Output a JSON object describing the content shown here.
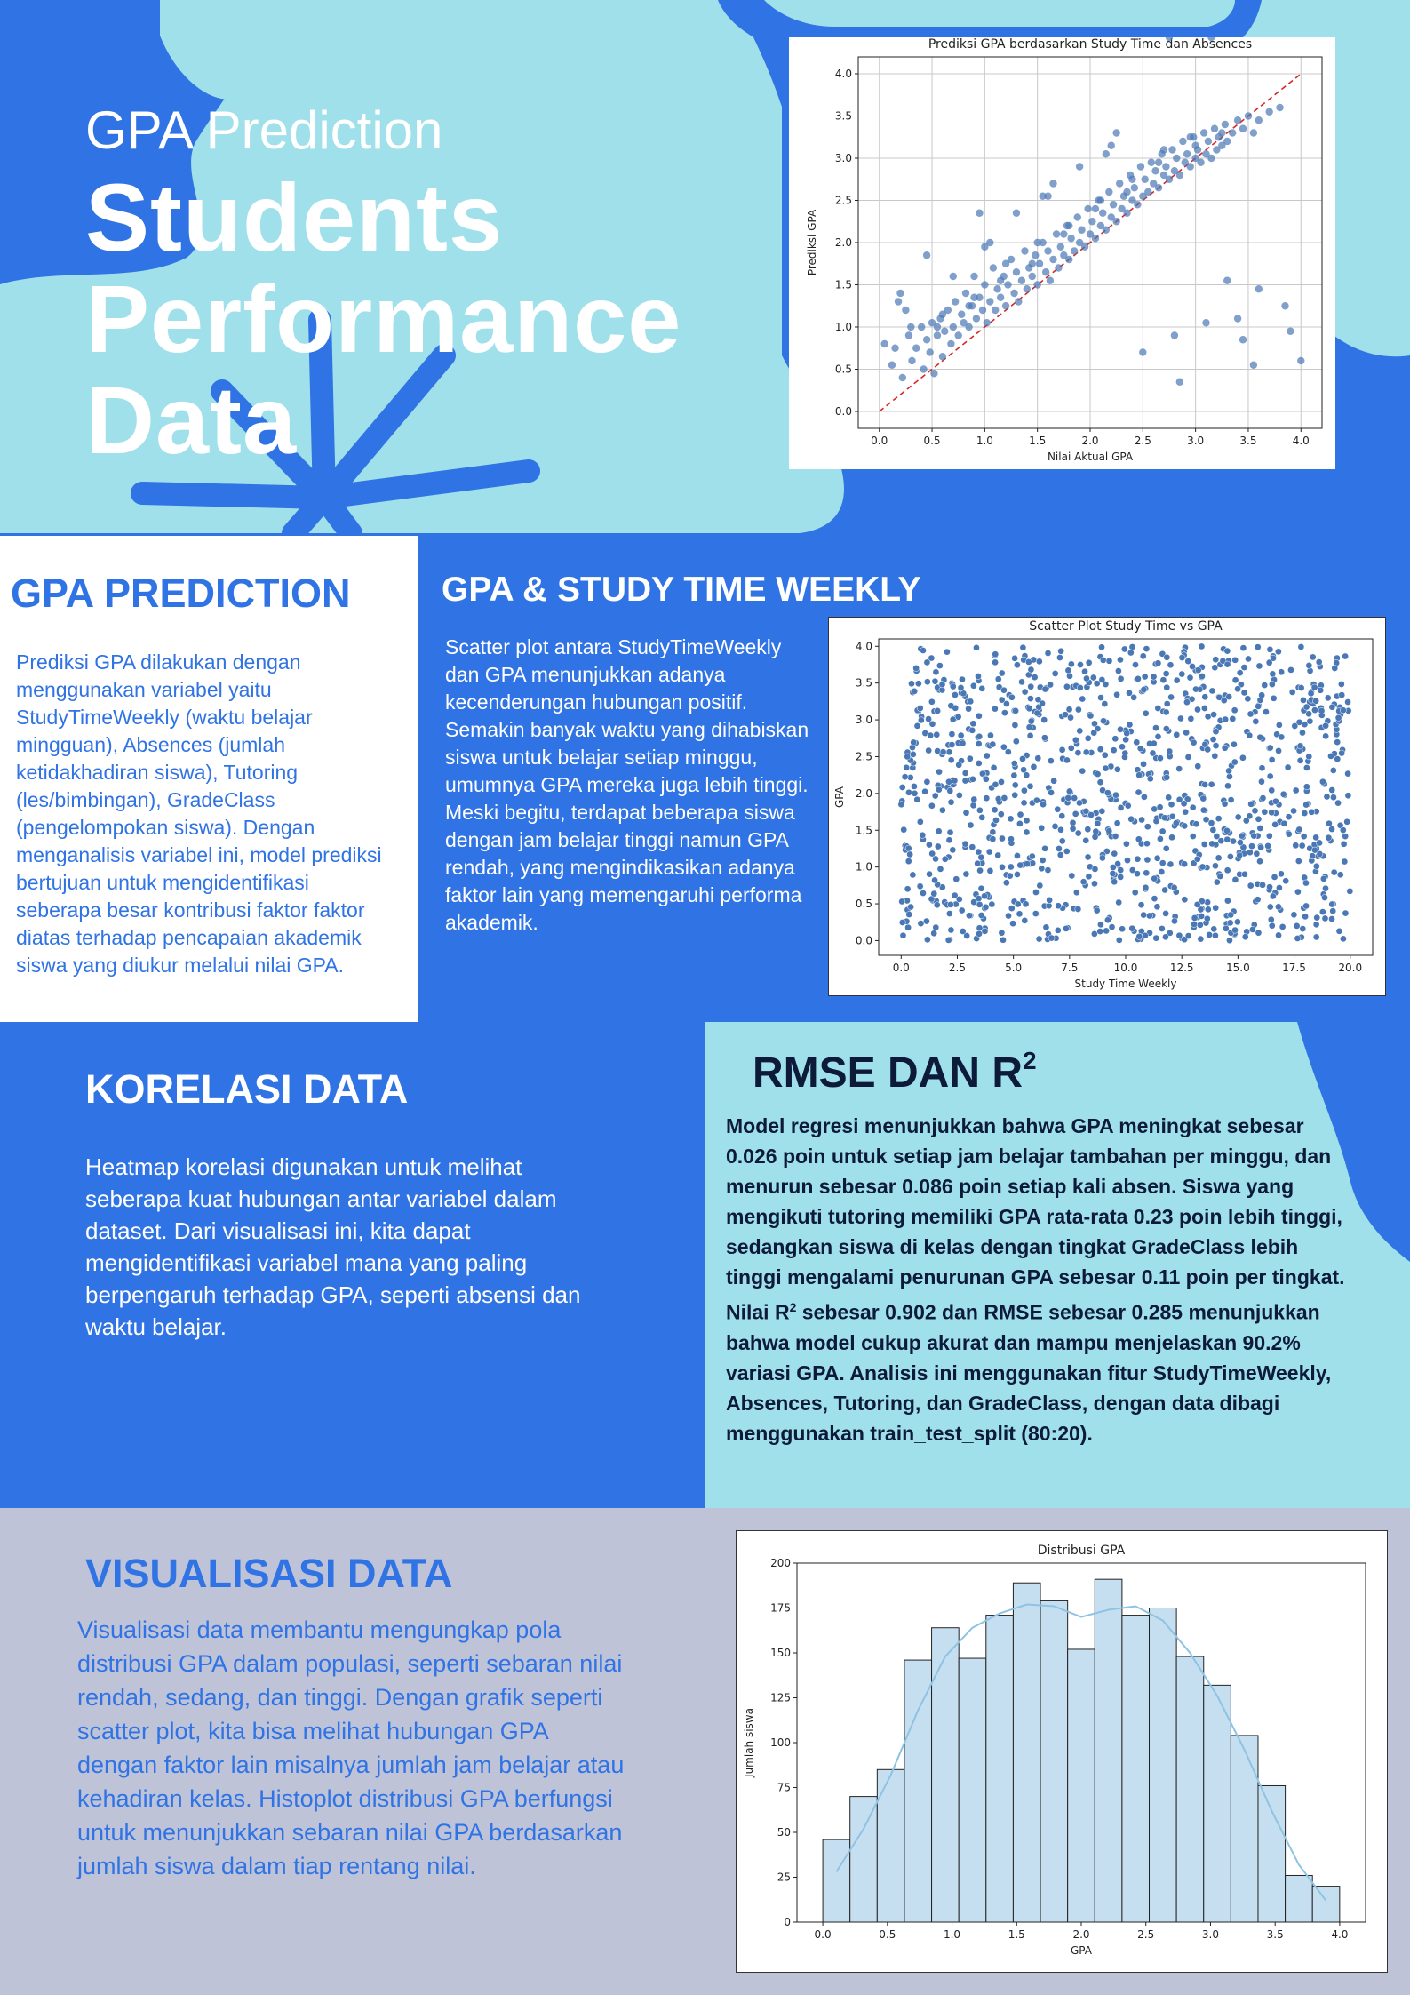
{
  "hero": {
    "subtitle": "GPA Prediction",
    "title_lines": [
      "Students",
      "Performance",
      "Data"
    ]
  },
  "sections": {
    "gpa_prediction": {
      "title": "GPA PREDICTION",
      "body": "Prediksi GPA dilakukan dengan menggunakan variabel yaitu StudyTimeWeekly (waktu belajar mingguan),  Absences (jumlah ketidakhadiran siswa), Tutoring (les/bimbingan), GradeClass (pengelompokan siswa). Dengan menganalisis variabel ini, model prediksi bertujuan untuk mengidentifikasi seberapa besar kontribusi faktor faktor diatas terhadap pencapaian akademik siswa yang diukur melalui nilai GPA."
    },
    "gpa_study_time": {
      "title": "GPA & STUDY TIME WEEKLY",
      "body": "Scatter plot antara StudyTimeWeekly dan GPA menunjukkan adanya kecenderungan hubungan positif. Semakin banyak waktu yang dihabiskan siswa untuk belajar setiap minggu, umumnya GPA mereka juga lebih tinggi. Meski begitu, terdapat beberapa siswa dengan jam belajar tinggi namun GPA rendah, yang mengindikasikan adanya faktor lain yang memengaruhi performa akademik."
    },
    "korelasi": {
      "title": "KORELASI DATA",
      "body": "Heatmap korelasi digunakan untuk melihat seberapa kuat hubungan antar variabel dalam dataset. Dari visualisasi ini, kita dapat mengidentifikasi variabel mana yang paling berpengaruh terhadap GPA, seperti absensi dan waktu belajar."
    },
    "rmse": {
      "title": "RMSE DAN R",
      "title_sup": "2",
      "body_part1": "Model regresi menunjukkan bahwa GPA meningkat sebesar 0.026 poin untuk setiap jam belajar tambahan per minggu, dan menurun sebesar 0.086 poin setiap kali absen. Siswa yang mengikuti tutoring memiliki GPA rata-rata 0.23 poin lebih tinggi, sedangkan siswa di kelas dengan tingkat GradeClass lebih tinggi mengalami penurunan GPA sebesar 0.11 poin per tingkat. Nilai R",
      "body_sup": "2",
      "body_part2": " sebesar 0.902 dan RMSE sebesar 0.285 menunjukkan bahwa model cukup akurat dan mampu menjelaskan 90.2% variasi GPA. Analisis ini menggunakan fitur StudyTimeWeekly, Absences, Tutoring, dan GradeClass, dengan data dibagi menggunakan train_test_split (80:20)."
    },
    "visualisasi": {
      "title": "VISUALISASI DATA",
      "body": "Visualisasi data membantu mengungkap pola distribusi GPA dalam populasi, seperti sebaran nilai rendah, sedang, dan tinggi. Dengan grafik seperti scatter plot, kita bisa melihat hubungan GPA dengan faktor lain misalnya jumlah jam belajar atau kehadiran kelas. Histoplot distribusi GPA berfungsi untuk menunjukkan sebaran nilai GPA berdasarkan jumlah siswa dalam tiap rentang nilai."
    }
  },
  "colors": {
    "blue": "#2f73e4",
    "light_cyan": "#9fe0ea",
    "lavender": "#bec3d8",
    "navy": "#0d1a3a",
    "point": "#4a78b5",
    "hist_fill": "#c6dff0"
  },
  "chart_data": [
    {
      "id": "prediction",
      "type": "scatter",
      "title": "Prediksi GPA berdasarkan Study Time dan Absences",
      "xlabel": "Nilai Aktual GPA",
      "ylabel": "Prediksi GPA",
      "xlim": [
        -0.2,
        4.2
      ],
      "ylim": [
        -0.2,
        4.2
      ],
      "xticks": [
        0.0,
        0.5,
        1.0,
        1.5,
        2.0,
        2.5,
        3.0,
        3.5,
        4.0
      ],
      "yticks": [
        0.0,
        0.5,
        1.0,
        1.5,
        2.0,
        2.5,
        3.0,
        3.5,
        4.0
      ],
      "grid": true,
      "reference_line": {
        "from": [
          0,
          0
        ],
        "to": [
          4,
          4
        ],
        "style": "dashed",
        "color": "#d62728"
      },
      "points_x": [
        0.05,
        0.12,
        0.18,
        0.22,
        0.28,
        0.31,
        0.35,
        0.4,
        0.42,
        0.45,
        0.48,
        0.5,
        0.52,
        0.55,
        0.58,
        0.6,
        0.62,
        0.65,
        0.68,
        0.7,
        0.72,
        0.75,
        0.78,
        0.8,
        0.82,
        0.85,
        0.88,
        0.9,
        0.92,
        0.95,
        0.98,
        1.0,
        1.02,
        1.05,
        1.08,
        1.1,
        1.12,
        1.15,
        1.18,
        1.2,
        1.22,
        1.25,
        1.28,
        1.3,
        1.32,
        1.35,
        1.38,
        1.4,
        1.42,
        1.45,
        1.48,
        1.5,
        1.52,
        1.55,
        1.58,
        1.6,
        1.62,
        1.65,
        1.68,
        1.7,
        1.72,
        1.75,
        1.78,
        1.8,
        1.82,
        1.85,
        1.88,
        1.9,
        1.92,
        1.95,
        1.98,
        2.0,
        2.02,
        2.05,
        2.08,
        2.1,
        2.12,
        2.15,
        2.18,
        2.2,
        2.22,
        2.25,
        2.28,
        2.3,
        2.32,
        2.35,
        2.38,
        2.4,
        2.42,
        2.45,
        2.48,
        2.5,
        2.52,
        2.55,
        2.58,
        2.6,
        2.62,
        2.65,
        2.68,
        2.7,
        2.72,
        2.75,
        2.78,
        2.8,
        2.82,
        2.85,
        2.88,
        2.9,
        2.92,
        2.95,
        2.98,
        3.0,
        3.02,
        3.05,
        3.08,
        3.1,
        3.12,
        3.15,
        3.18,
        3.2,
        3.22,
        3.25,
        3.28,
        3.3,
        3.35,
        3.4,
        3.45,
        3.5,
        3.55,
        3.6,
        3.7,
        3.8,
        3.9,
        4.0,
        0.3,
        0.6,
        0.9,
        1.2,
        1.5,
        1.8,
        2.1,
        2.4,
        2.7,
        3.0,
        3.3,
        3.6,
        1.0,
        1.6,
        2.2,
        2.8,
        3.4,
        0.7,
        1.3,
        1.9,
        2.5,
        3.1,
        0.15,
        0.25,
        0.55,
        0.85,
        1.15,
        1.45,
        1.75,
        2.05,
        2.35,
        2.65,
        2.95,
        3.25,
        3.55,
        3.85,
        0.45,
        1.05,
        1.65,
        2.25,
        2.85,
        3.45,
        0.2,
        0.95,
        1.55,
        2.15,
        2.75,
        3.15
      ],
      "points_y": [
        0.8,
        0.55,
        1.3,
        0.4,
        0.9,
        0.6,
        0.75,
        1.0,
        0.5,
        0.85,
        0.7,
        1.05,
        0.45,
        0.9,
        1.1,
        0.65,
        0.95,
        1.2,
        0.8,
        1.0,
        1.3,
        0.9,
        1.15,
        1.05,
        1.4,
        1.0,
        1.25,
        1.6,
        1.1,
        1.35,
        1.2,
        1.5,
        1.05,
        1.3,
        1.7,
        1.2,
        1.45,
        1.35,
        1.6,
        1.25,
        1.5,
        1.8,
        1.4,
        1.65,
        1.3,
        1.55,
        1.9,
        1.45,
        1.7,
        1.6,
        1.85,
        1.5,
        1.75,
        2.0,
        1.65,
        1.9,
        1.55,
        1.8,
        2.1,
        1.7,
        1.95,
        1.85,
        2.2,
        1.8,
        2.05,
        1.9,
        2.3,
        2.0,
        2.15,
        1.95,
        2.4,
        2.1,
        2.25,
        2.05,
        2.5,
        2.2,
        2.35,
        2.15,
        2.6,
        2.3,
        2.45,
        2.25,
        2.7,
        2.4,
        2.55,
        2.35,
        2.8,
        2.5,
        2.65,
        2.45,
        2.9,
        2.55,
        2.75,
        2.6,
        2.95,
        2.7,
        2.85,
        2.65,
        3.05,
        2.8,
        2.9,
        2.75,
        3.1,
        2.85,
        3.0,
        2.8,
        3.2,
        2.95,
        3.05,
        2.9,
        3.25,
        3.0,
        3.1,
        2.95,
        3.3,
        3.05,
        3.2,
        3.0,
        3.35,
        3.1,
        3.25,
        3.15,
        3.4,
        3.2,
        3.3,
        3.45,
        3.35,
        3.5,
        3.3,
        3.45,
        3.55,
        3.6,
        0.95,
        0.6,
        1.0,
        1.15,
        1.35,
        1.75,
        2.0,
        2.2,
        2.5,
        2.75,
        3.1,
        3.15,
        1.55,
        1.45,
        1.95,
        2.55,
        3.15,
        0.9,
        1.1,
        1.6,
        2.35,
        2.9,
        0.7,
        1.05,
        0.75,
        1.2,
        1.0,
        1.25,
        1.55,
        1.75,
        2.1,
        2.4,
        2.6,
        2.95,
        3.25,
        3.3,
        0.55,
        1.25,
        1.85,
        2.0,
        2.7,
        3.3,
        0.35,
        0.85,
        1.4,
        2.35,
        2.55,
        3.05
      ]
    },
    {
      "id": "studytime",
      "type": "scatter",
      "title": "Scatter Plot Study Time vs GPA",
      "xlabel": "Study Time Weekly",
      "ylabel": "GPA",
      "xlim": [
        -1,
        21
      ],
      "ylim": [
        -0.2,
        4.1
      ],
      "xticks": [
        0.0,
        2.5,
        5.0,
        7.5,
        10.0,
        12.5,
        15.0,
        17.5,
        20.0
      ],
      "yticks": [
        0.0,
        0.5,
        1.0,
        1.5,
        2.0,
        2.5,
        3.0,
        3.5,
        4.0
      ],
      "grid": false,
      "point_count": 1100,
      "x_range": [
        0,
        20
      ],
      "y_range": [
        0,
        4
      ]
    },
    {
      "id": "distribution",
      "type": "bar",
      "title": "Distribusi GPA",
      "xlabel": "GPA",
      "ylabel": "Jumlah siswa",
      "xlim": [
        -0.2,
        4.2
      ],
      "ylim": [
        0,
        200
      ],
      "xticks": [
        0.0,
        0.5,
        1.0,
        1.5,
        2.0,
        2.5,
        3.0,
        3.5,
        4.0
      ],
      "yticks": [
        0,
        25,
        50,
        75,
        100,
        125,
        150,
        175,
        200
      ],
      "bin_start": 0.0,
      "bin_width": 0.2105,
      "values": [
        46,
        70,
        85,
        146,
        164,
        147,
        171,
        189,
        179,
        152,
        191,
        171,
        175,
        148,
        132,
        104,
        76,
        26,
        20
      ],
      "kde": [
        28,
        52,
        82,
        118,
        148,
        164,
        172,
        177,
        176,
        170,
        174,
        176,
        168,
        150,
        126,
        96,
        62,
        32,
        12
      ]
    }
  ]
}
